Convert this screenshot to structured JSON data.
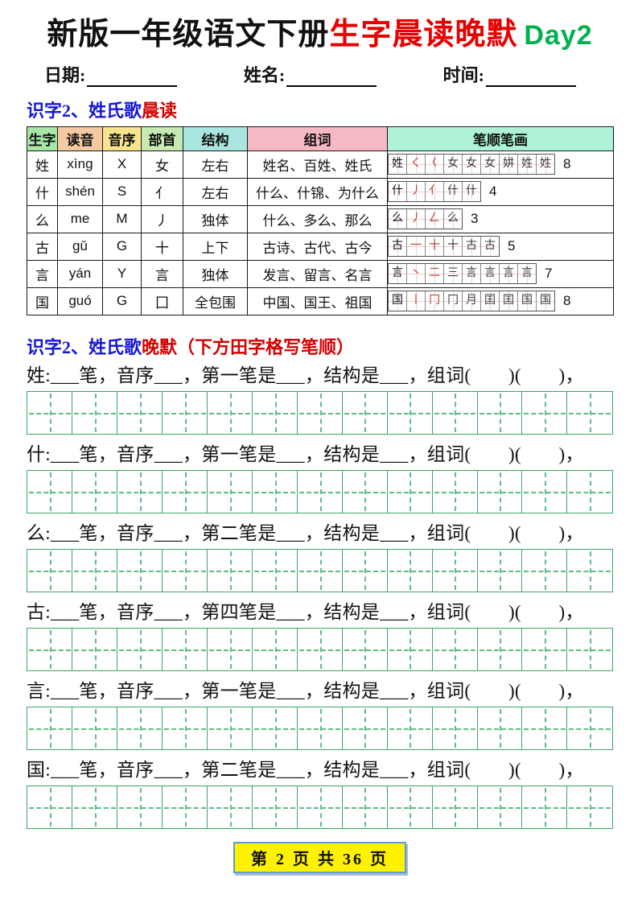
{
  "title": {
    "black": "新版一年级语文下册",
    "red": "生字晨读晚默",
    "green": "Day2"
  },
  "info_line": {
    "date_label": "日期:",
    "name_label": "姓名:",
    "time_label": "时间:"
  },
  "section_morning": {
    "title_blue": "识字2、姓氏歌",
    "title_red": "晨读"
  },
  "table": {
    "headers": [
      "生字",
      "读音",
      "音序",
      "部首",
      "结构",
      "组词",
      "笔顺笔画"
    ],
    "header_colors": [
      "#a6e7a6",
      "#f5caa2",
      "#f8e38f",
      "#c7e9b2",
      "#a8e6df",
      "#f6b9c3",
      "#aef3d5"
    ],
    "rows": [
      {
        "char": "姓",
        "pinyin": "xìng",
        "initial": "X",
        "radical": "女",
        "structure": "左右",
        "words": "姓名、百姓、姓氏",
        "stroke_count": "8",
        "stroke_boxes": [
          "姓",
          "く",
          "𡿨",
          "女",
          "女",
          "女",
          "妌",
          "姓",
          "姓"
        ]
      },
      {
        "char": "什",
        "pinyin": "shén",
        "initial": "S",
        "radical": "亻",
        "structure": "左右",
        "words": "什么、什锦、为什么",
        "stroke_count": "4",
        "stroke_boxes": [
          "什",
          "丿",
          "亻",
          "什",
          "什"
        ]
      },
      {
        "char": "么",
        "pinyin": "me",
        "initial": "M",
        "radical": "丿",
        "structure": "独体",
        "words": "什么、多么、那么",
        "stroke_count": "3",
        "stroke_boxes": [
          "么",
          "丿",
          "𠃋",
          "么"
        ]
      },
      {
        "char": "古",
        "pinyin": "gǔ",
        "initial": "G",
        "radical": "十",
        "structure": "上下",
        "words": "古诗、古代、古今",
        "stroke_count": "5",
        "stroke_boxes": [
          "古",
          "一",
          "十",
          "十",
          "古",
          "古"
        ]
      },
      {
        "char": "言",
        "pinyin": "yán",
        "initial": "Y",
        "radical": "言",
        "structure": "独体",
        "words": "发言、留言、名言",
        "stroke_count": "7",
        "stroke_boxes": [
          "言",
          "丶",
          "二",
          "三",
          "言",
          "言",
          "言",
          "言"
        ]
      },
      {
        "char": "国",
        "pinyin": "guó",
        "initial": "G",
        "radical": "囗",
        "structure": "全包围",
        "words": "中国、国王、祖国",
        "stroke_count": "8",
        "stroke_boxes": [
          "国",
          "丨",
          "冂",
          "冂",
          "月",
          "囯",
          "囯",
          "国",
          "国"
        ]
      }
    ]
  },
  "section_evening": {
    "title_blue": "识字2、姓氏歌",
    "title_red": "晚默（下方田字格写笔顺）"
  },
  "worksheet": {
    "grid_boxes_per_row": 13,
    "grid_color": "#3aa865",
    "lines": [
      {
        "char": "姓",
        "text": "姓:___笔，音序___，第一笔是___，结构是___，组词(　　)(　　)，"
      },
      {
        "char": "什",
        "text": "什:___笔，音序___，第一笔是___，结构是___，组词(　　)(　　)，"
      },
      {
        "char": "么",
        "text": "么:___笔，音序___，第二笔是___，结构是___，组词(　　)(　　)，"
      },
      {
        "char": "古",
        "text": "古:___笔，音序___，第四笔是___，结构是___，组词(　　)(　　)，"
      },
      {
        "char": "言",
        "text": "言:___笔，音序___，第一笔是___，结构是___，组词(　　)(　　)，"
      },
      {
        "char": "国",
        "text": "国:___笔，音序___，第二笔是___，结构是___，组词(　　)(　　)，"
      }
    ]
  },
  "footer": {
    "text": "第 2 页 共 36 页",
    "bg_color": "#fff200"
  }
}
